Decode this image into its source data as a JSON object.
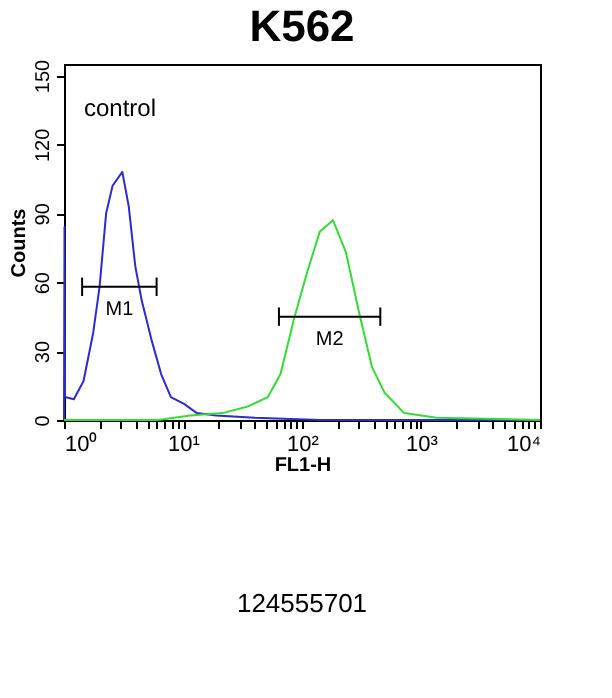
{
  "chart_data": {
    "type": "line",
    "title": "K562",
    "xlabel": "FL1-H",
    "ylabel": "Counts",
    "log": "x",
    "grid": false,
    "marker": "none",
    "line_style": "solid",
    "xlim": [
      1,
      10000
    ],
    "ylim": [
      0,
      155
    ],
    "xticks": [
      {
        "value": 1,
        "label": "10⁰"
      },
      {
        "value": 2,
        "label": null
      },
      {
        "value": 3,
        "label": null
      },
      {
        "value": 4,
        "label": null
      },
      {
        "value": 5,
        "label": null
      },
      {
        "value": 6,
        "label": null
      },
      {
        "value": 7,
        "label": null
      },
      {
        "value": 8,
        "label": null
      },
      {
        "value": 9,
        "label": null
      },
      {
        "value": 10,
        "label": "10¹"
      },
      {
        "value": 20,
        "label": null
      },
      {
        "value": 30,
        "label": null
      },
      {
        "value": 40,
        "label": null
      },
      {
        "value": 50,
        "label": null
      },
      {
        "value": 60,
        "label": null
      },
      {
        "value": 70,
        "label": null
      },
      {
        "value": 80,
        "label": null
      },
      {
        "value": 90,
        "label": null
      },
      {
        "value": 100,
        "label": "10²"
      },
      {
        "value": 200,
        "label": null
      },
      {
        "value": 300,
        "label": null
      },
      {
        "value": 400,
        "label": null
      },
      {
        "value": 500,
        "label": null
      },
      {
        "value": 600,
        "label": null
      },
      {
        "value": 700,
        "label": null
      },
      {
        "value": 800,
        "label": null
      },
      {
        "value": 900,
        "label": null
      },
      {
        "value": 1000,
        "label": "10³"
      },
      {
        "value": 2000,
        "label": null
      },
      {
        "value": 3000,
        "label": null
      },
      {
        "value": 4000,
        "label": null
      },
      {
        "value": 5000,
        "label": null
      },
      {
        "value": 6000,
        "label": null
      },
      {
        "value": 7000,
        "label": null
      },
      {
        "value": 8000,
        "label": null
      },
      {
        "value": 9000,
        "label": null
      },
      {
        "value": 10000,
        "label": "10⁴"
      }
    ],
    "yticks": [
      0,
      30,
      60,
      90,
      120,
      150
    ],
    "series": [
      {
        "color": "#2b2bd0",
        "x": [
          1.0,
          1.01,
          1.02,
          1.21,
          1.46,
          1.76,
          1.99,
          2.26,
          2.56,
          3.09,
          3.5,
          3.97,
          4.5,
          5.43,
          6.55,
          7.91,
          10.2,
          13.1,
          19,
          40,
          141,
          10000
        ],
        "values": [
          0,
          84,
          10,
          9,
          17,
          38,
          58,
          90,
          102,
          108,
          93,
          67,
          52,
          35,
          20,
          10,
          7,
          3,
          2,
          1,
          0,
          0
        ]
      },
      {
        "color": "#33dd33",
        "x": [
          1,
          6.2,
          11.5,
          21.5,
          35.6,
          51.7,
          66,
          85.6,
          110,
          141,
          182,
          234,
          301,
          388,
          493,
          723,
          1349,
          10000
        ],
        "values": [
          0,
          0,
          2,
          3,
          6,
          10,
          20,
          44,
          64,
          82,
          87,
          73,
          47,
          23,
          12,
          3,
          1,
          0
        ]
      },
      {
        "color": "#000000",
        "x": [
          1.42,
          6.0
        ],
        "values": [
          58,
          58
        ],
        "errors": [
          4,
          4
        ]
      },
      {
        "color": "#000000",
        "x": [
          64,
          455
        ],
        "values": [
          45,
          45
        ],
        "errors": [
          4,
          4
        ]
      }
    ],
    "annotations": [
      "control",
      "124555701",
      {
        "text": "M1",
        "x": 2.92,
        "y": 58
      },
      {
        "text": "M2",
        "x": 171,
        "y": 45
      }
    ]
  }
}
